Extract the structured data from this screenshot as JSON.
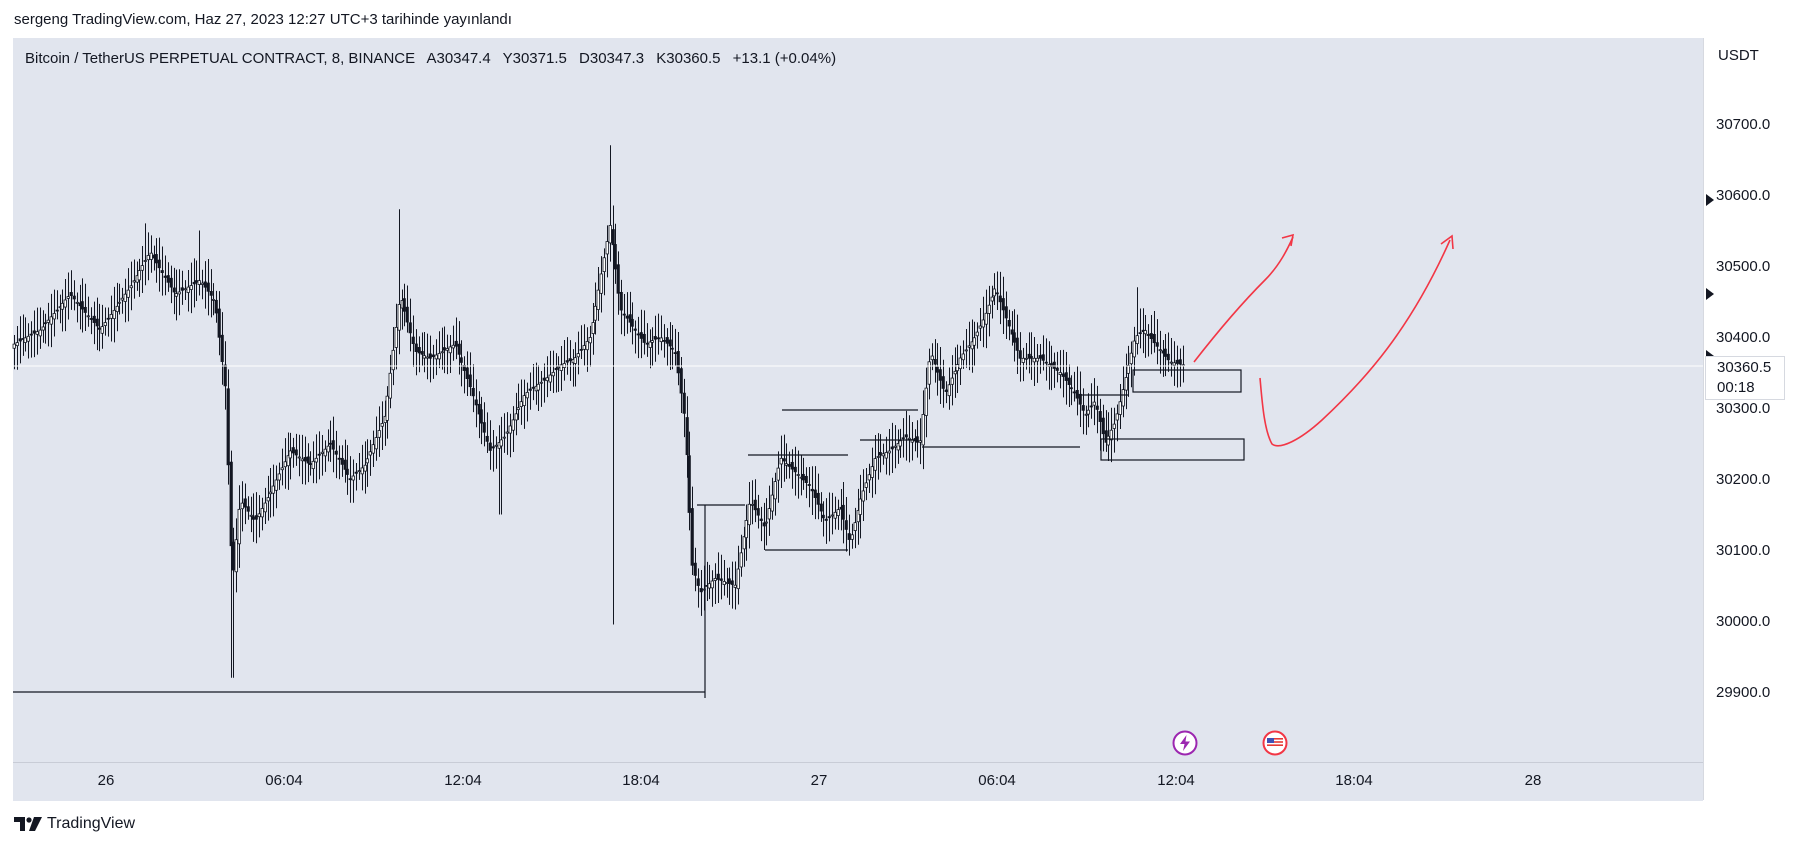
{
  "publication": "sergeng TradingView.com, Haz 27, 2023 12:27 UTC+3 tarihinde yayınlandı",
  "legend": {
    "symbol": "Bitcoin / TetherUS PERPETUAL CONTRACT, 8, BINANCE",
    "open": "A30347.4",
    "high": "Y30371.5",
    "low": "D30347.3",
    "close": "K30360.5",
    "change": "+13.1 (+0.04%)"
  },
  "price_axis": {
    "currency": "USDT",
    "labels": [
      "30700.0",
      "30600.0",
      "30500.0",
      "30400.0",
      "30300.0",
      "30200.0",
      "30100.0",
      "30000.0",
      "29900.0"
    ],
    "current_price": "30360.5",
    "countdown": "00:18"
  },
  "time_axis": {
    "labels": [
      "26",
      "06:04",
      "12:04",
      "18:04",
      "27",
      "06:04",
      "12:04",
      "18:04",
      "28"
    ]
  },
  "brand": "TradingView",
  "icons": [
    "lightning-event-icon",
    "us-flag-event-icon",
    "tradingview-logo-icon"
  ],
  "colors": {
    "chart_bg": "#e1e5ee",
    "candle": "#131722",
    "annotation": "#f23645",
    "event_ring": "#9c27b0"
  }
}
